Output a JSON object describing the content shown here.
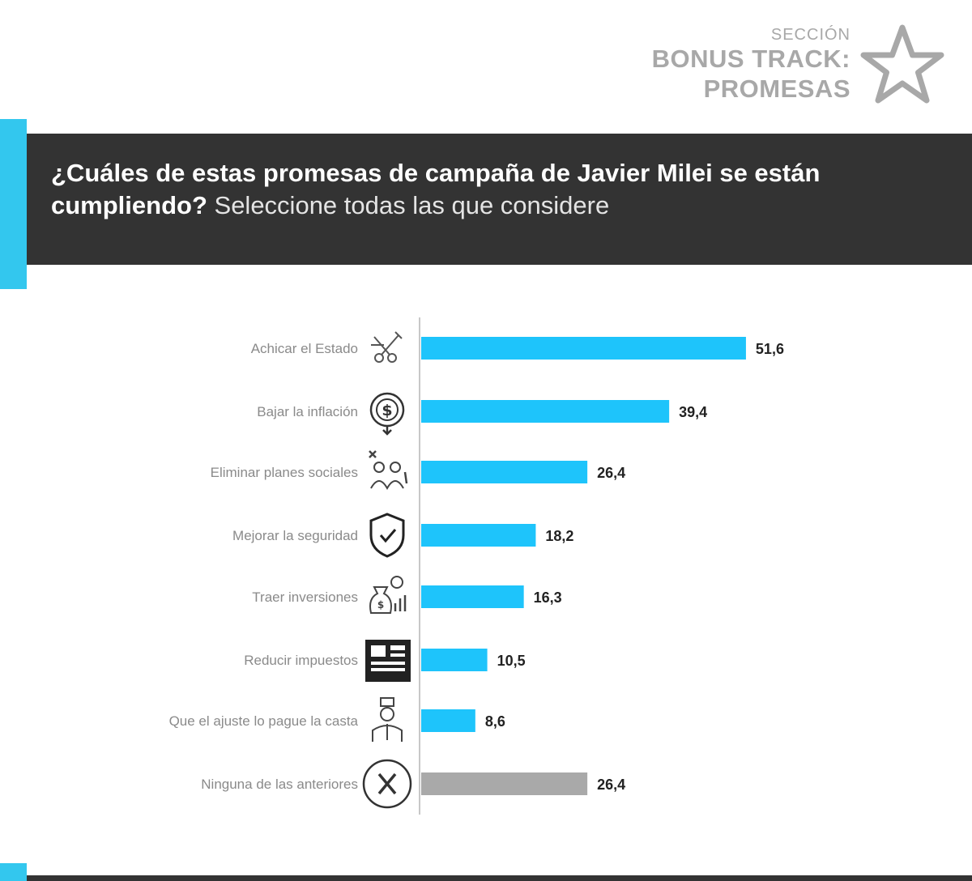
{
  "section": {
    "kicker": "SECCIÓN",
    "title_line1": "BONUS TRACK:",
    "title_line2": "PROMESAS",
    "icon": "star-outline-icon"
  },
  "question": {
    "bold": "¿Cuáles de estas promesas de campaña de Javier Milei se están cumpliendo?",
    "light": "Seleccione todas las que considere"
  },
  "colors": {
    "bar_primary": "#1ec4fb",
    "bar_neutral": "#a9a9a9",
    "accent": "#33c7ee",
    "header_bg": "#333333"
  },
  "chart_data": {
    "type": "bar",
    "orientation": "horizontal",
    "title": "¿Cuáles de estas promesas de campaña de Javier Milei se están cumpliendo?",
    "xlabel": "",
    "ylabel": "",
    "xlim": [
      0,
      100
    ],
    "categories": [
      "Achicar el Estado",
      "Bajar la inflación",
      "Eliminar planes sociales",
      "Mejorar la seguridad",
      "Traer inversiones",
      "Reducir impuestos",
      "Que el ajuste lo pague la casta",
      "Ninguna de las anteriores"
    ],
    "values": [
      51.6,
      39.4,
      26.4,
      18.2,
      16.3,
      10.5,
      8.6,
      26.4
    ],
    "value_labels": [
      "51,6",
      "39,4",
      "26,4",
      "18,2",
      "16,3",
      "10,5",
      "8,6",
      "26,4"
    ],
    "bar_colors": [
      "primary",
      "primary",
      "primary",
      "primary",
      "primary",
      "primary",
      "primary",
      "neutral"
    ],
    "icons": [
      "scissors-cutting-icon",
      "inflation-coin-icon",
      "social-plans-people-icon",
      "security-shield-check-icon",
      "investment-moneybag-icon",
      "tax-document-icon",
      "caste-politician-icon",
      "none-x-circle-icon"
    ]
  }
}
